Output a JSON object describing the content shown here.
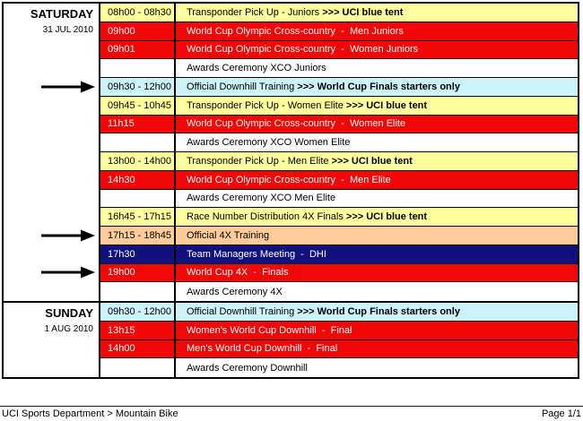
{
  "page": {
    "footer_left": "UCI Sports Department > Mountain Bike",
    "footer_right": "Page 1/1"
  },
  "colors": {
    "yellow": {
      "bg": "#FFFF9E",
      "fg": "#000000"
    },
    "red": {
      "bg": "#F20707",
      "fg": "#FFFFFF"
    },
    "white": {
      "bg": "#FFFFFF",
      "fg": "#000000"
    },
    "lightblue": {
      "bg": "#CCF2FA",
      "fg": "#000000"
    },
    "orange": {
      "bg": "#FFCC99",
      "fg": "#000000"
    },
    "navy": {
      "bg": "#10107E",
      "fg": "#FFFFFF"
    }
  },
  "schedule": {
    "sections": [
      {
        "day": "SATURDAY",
        "date": "31 JUL 2010",
        "rows": [
          {
            "time": "08h00 - 08h30",
            "event": "Transponder Pick Up - Juniors ",
            "bold": ">>> UCI blue tent",
            "style": "yellow",
            "arrow": false
          },
          {
            "time": "09h00",
            "event": "World Cup Olympic Cross-country  -  Men Juniors",
            "bold": "",
            "style": "red",
            "arrow": false
          },
          {
            "time": "09h01",
            "event": "World Cup Olympic Cross-country  -  Women Juniors",
            "bold": "",
            "style": "red",
            "arrow": false
          },
          {
            "time": "",
            "event": "Awards Ceremony XCO Juniors",
            "bold": "",
            "style": "white",
            "arrow": false
          },
          {
            "time": "09h30 - 12h00",
            "event": "Official Downhill Training ",
            "bold": ">>> World Cup Finals starters only",
            "style": "lightblue",
            "arrow": true
          },
          {
            "time": "09h45 - 10h45",
            "event": "Transponder Pick Up - Women Elite ",
            "bold": ">>> UCI blue tent",
            "style": "yellow",
            "arrow": false
          },
          {
            "time": "11h15",
            "event": "World Cup Olympic Cross-country  -  Women Elite",
            "bold": "",
            "style": "red",
            "arrow": false
          },
          {
            "time": "",
            "event": "Awards Ceremony XCO Women Elite",
            "bold": "",
            "style": "white",
            "arrow": false
          },
          {
            "time": "13h00 - 14h00",
            "event": "Transponder Pick Up - Men Elite ",
            "bold": ">>> UCI blue tent",
            "style": "yellow",
            "arrow": false
          },
          {
            "time": "14h30",
            "event": "World Cup Olympic Cross-country  -  Men Elite",
            "bold": "",
            "style": "red",
            "arrow": false
          },
          {
            "time": "",
            "event": "Awards Ceremony XCO Men Elite",
            "bold": "",
            "style": "white",
            "arrow": false
          },
          {
            "time": "16h45 - 17h15",
            "event": "Race Number Distribution 4X Finals ",
            "bold": ">>> UCI blue tent",
            "style": "yellow",
            "arrow": false
          },
          {
            "time": "17h15 - 18h45",
            "event": "Official 4X Training",
            "bold": "",
            "style": "orange",
            "arrow": true
          },
          {
            "time": "17h30",
            "event": "Team Managers Meeting  -  DHI",
            "bold": "",
            "style": "navy",
            "arrow": false
          },
          {
            "time": "19h00",
            "event": "World Cup 4X  -  Finals",
            "bold": "",
            "style": "red",
            "arrow": true
          },
          {
            "time": "",
            "event": "Awards Ceremony 4X",
            "bold": "",
            "style": "white",
            "arrow": false
          }
        ]
      },
      {
        "day": "SUNDAY",
        "date": "1 AUG 2010",
        "rows": [
          {
            "time": "09h30 - 12h00",
            "event": "Official Downhill Training ",
            "bold": ">>> World Cup Finals starters only",
            "style": "lightblue",
            "arrow": false
          },
          {
            "time": "13h15",
            "event": "Women's World Cup Downhill  -  Final",
            "bold": "",
            "style": "red",
            "arrow": false
          },
          {
            "time": "14h00",
            "event": "Men's World Cup Downhill  -  Final",
            "bold": "",
            "style": "red",
            "arrow": false
          },
          {
            "time": "",
            "event": "Awards Ceremony Downhill",
            "bold": "",
            "style": "white",
            "arrow": false
          }
        ]
      }
    ]
  }
}
